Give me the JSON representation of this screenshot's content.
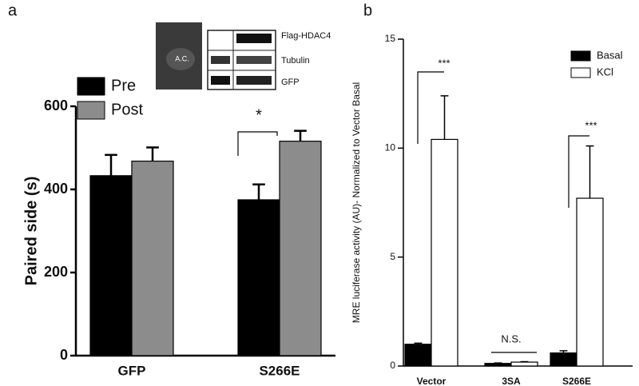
{
  "panel_labels": [
    "a",
    "b"
  ],
  "inset": {
    "image_label": "A.C.",
    "blot_labels": [
      "Flag-HDAC4",
      "Tubulin",
      "GFP"
    ]
  },
  "chart_data": [
    {
      "type": "bar",
      "ylabel": "Paired side (s)",
      "categories": [
        "GFP",
        "S266E"
      ],
      "series": [
        {
          "name": "Pre",
          "color": "#000000",
          "values": [
            433,
            375
          ],
          "errors": [
            50,
            37
          ]
        },
        {
          "name": "Post",
          "color": "#8c8c8c",
          "values": [
            468,
            516
          ],
          "errors": [
            33,
            25
          ]
        }
      ],
      "ylim": [
        0,
        600
      ],
      "yticks": [
        0,
        200,
        400,
        600
      ],
      "legend": "upper left",
      "annotations": [
        "*"
      ]
    },
    {
      "type": "bar",
      "ylabel": "MRE luciferase activity (AU)- Normalized to Vector Basal",
      "categories": [
        "Vector",
        "3SA",
        "S266E"
      ],
      "series": [
        {
          "name": "Basal",
          "color": "#000000",
          "values": [
            1.0,
            0.12,
            0.6
          ],
          "errors": [
            0.05,
            0.02,
            0.1
          ]
        },
        {
          "name": "KCl",
          "color": "#ffffff",
          "values": [
            10.4,
            0.18,
            7.7
          ],
          "errors": [
            2.0,
            0.02,
            2.4
          ]
        }
      ],
      "ylim": [
        0,
        15
      ],
      "yticks": [
        0,
        5,
        10,
        15
      ],
      "legend": "upper right",
      "annotations": [
        "***",
        "N.S.",
        "***"
      ]
    }
  ]
}
